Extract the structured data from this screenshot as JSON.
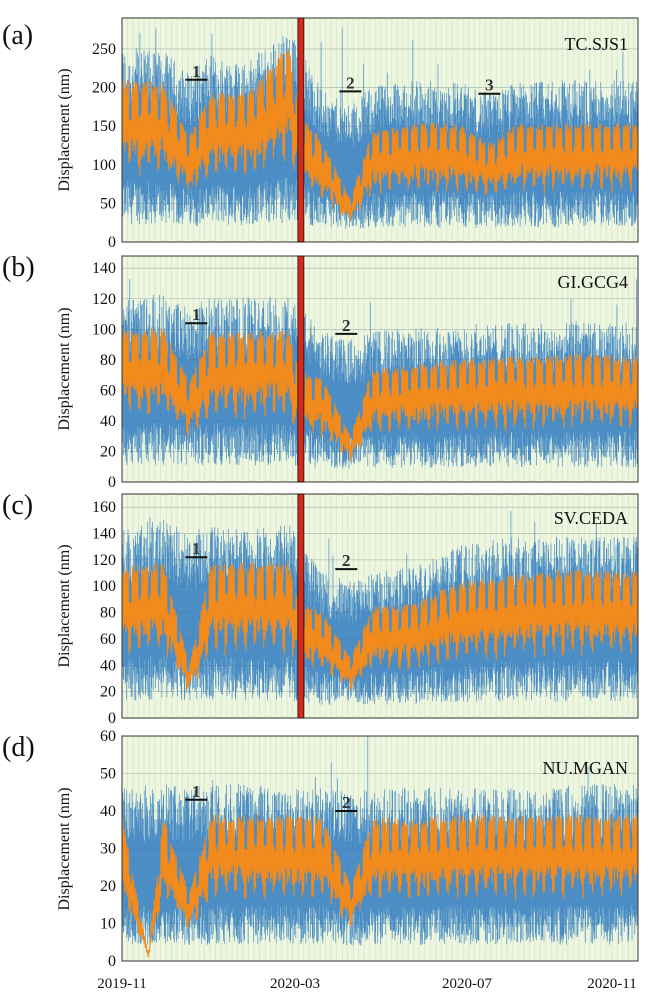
{
  "chart_data": [
    {
      "type": "line",
      "panel_label": "(a)",
      "station": "TC.SJS1",
      "ylabel": "Displacement (nm)",
      "ylim": [
        0,
        290
      ],
      "yticks": [
        0,
        50,
        100,
        150,
        200,
        250
      ],
      "xlim": [
        "2019-11-01",
        "2020-11-10"
      ],
      "series_colors": [
        "#2f7bbf",
        "#f28a1c"
      ],
      "lockdown_marker_date": "2020-03-10",
      "markers": [
        {
          "label": "1",
          "date": "2019-12-25",
          "value": 210
        },
        {
          "label": "2",
          "date": "2020-04-15",
          "value": 195
        },
        {
          "label": "3",
          "date": "2020-07-25",
          "value": 192
        }
      ],
      "series": [
        {
          "name": "",
          "x": [
            "2019-11-01",
            "2019-12-01",
            "2019-12-20",
            "2020-01-05",
            "2020-02-01",
            "2020-03-01",
            "2020-03-10",
            "2020-03-25",
            "2020-04-15",
            "2020-05-01",
            "2020-06-01",
            "2020-07-01",
            "2020-07-25",
            "2020-08-15",
            "2020-09-15",
            "2020-10-15",
            "2020-11-10"
          ],
          "values": [
            230,
            225,
            200,
            220,
            215,
            250,
            230,
            180,
            160,
            185,
            190,
            190,
            175,
            190,
            190,
            195,
            190
          ]
        },
        {
          "name": "",
          "x": [
            "2019-11-01",
            "2019-12-01",
            "2019-12-20",
            "2020-01-05",
            "2020-02-01",
            "2020-03-01",
            "2020-03-10",
            "2020-03-25",
            "2020-04-15",
            "2020-05-01",
            "2020-06-01",
            "2020-07-01",
            "2020-07-25",
            "2020-08-15",
            "2020-09-15",
            "2020-10-15",
            "2020-11-10"
          ],
          "values": [
            205,
            200,
            135,
            190,
            190,
            250,
            160,
            130,
            55,
            140,
            150,
            150,
            125,
            150,
            150,
            150,
            150
          ]
        }
      ]
    },
    {
      "type": "line",
      "panel_label": "(b)",
      "station": "GI.GCG4",
      "ylabel": "Displacement (nm)",
      "ylim": [
        0,
        148
      ],
      "yticks": [
        0,
        20,
        40,
        60,
        80,
        100,
        120,
        140
      ],
      "xlim": [
        "2019-11-01",
        "2020-11-10"
      ],
      "series_colors": [
        "#2f7bbf",
        "#f28a1c"
      ],
      "lockdown_marker_date": "2020-03-10",
      "markers": [
        {
          "label": "1",
          "date": "2019-12-25",
          "value": 104
        },
        {
          "label": "2",
          "date": "2020-04-12",
          "value": 97
        }
      ],
      "series": [
        {
          "name": "",
          "x": [
            "2019-11-01",
            "2019-12-01",
            "2019-12-20",
            "2020-01-05",
            "2020-02-01",
            "2020-03-01",
            "2020-03-10",
            "2020-03-25",
            "2020-04-15",
            "2020-05-01",
            "2020-06-01",
            "2020-07-01",
            "2020-08-01",
            "2020-09-01",
            "2020-10-01",
            "2020-11-10"
          ],
          "values": [
            110,
            112,
            105,
            110,
            110,
            110,
            105,
            90,
            85,
            90,
            92,
            92,
            95,
            95,
            95,
            95
          ]
        },
        {
          "name": "",
          "x": [
            "2019-11-01",
            "2019-12-01",
            "2019-12-20",
            "2020-01-05",
            "2020-02-01",
            "2020-03-01",
            "2020-03-10",
            "2020-03-25",
            "2020-04-15",
            "2020-05-01",
            "2020-06-01",
            "2020-07-01",
            "2020-08-01",
            "2020-09-01",
            "2020-10-01",
            "2020-11-10"
          ],
          "values": [
            98,
            98,
            65,
            96,
            96,
            96,
            70,
            68,
            30,
            72,
            75,
            78,
            80,
            80,
            82,
            80
          ]
        }
      ]
    },
    {
      "type": "line",
      "panel_label": "(c)",
      "station": "SV.CEDA",
      "ylabel": "Displacement (nm)",
      "ylim": [
        0,
        170
      ],
      "yticks": [
        0,
        20,
        40,
        60,
        80,
        100,
        120,
        140,
        160
      ],
      "xlim": [
        "2019-11-01",
        "2020-11-10"
      ],
      "series_colors": [
        "#2f7bbf",
        "#f28a1c"
      ],
      "lockdown_marker_date": "2020-03-10",
      "markers": [
        {
          "label": "1",
          "date": "2019-12-25",
          "value": 122
        },
        {
          "label": "2",
          "date": "2020-04-12",
          "value": 113
        }
      ],
      "series": [
        {
          "name": "",
          "x": [
            "2019-11-01",
            "2019-12-01",
            "2019-12-20",
            "2020-01-05",
            "2020-02-01",
            "2020-03-01",
            "2020-03-10",
            "2020-03-25",
            "2020-04-15",
            "2020-05-01",
            "2020-06-01",
            "2020-07-01",
            "2020-08-01",
            "2020-09-01",
            "2020-10-01",
            "2020-11-10"
          ],
          "values": [
            130,
            140,
            125,
            135,
            130,
            135,
            125,
            100,
            95,
            100,
            105,
            120,
            125,
            125,
            125,
            125
          ]
        },
        {
          "name": "",
          "x": [
            "2019-11-01",
            "2019-12-01",
            "2019-12-20",
            "2020-01-05",
            "2020-02-01",
            "2020-03-01",
            "2020-03-10",
            "2020-03-25",
            "2020-04-15",
            "2020-05-01",
            "2020-06-01",
            "2020-07-01",
            "2020-08-01",
            "2020-09-01",
            "2020-10-01",
            "2020-11-10"
          ],
          "values": [
            112,
            115,
            40,
            115,
            115,
            115,
            85,
            80,
            45,
            82,
            85,
            100,
            105,
            108,
            110,
            108
          ]
        }
      ]
    },
    {
      "type": "line",
      "panel_label": "(d)",
      "station": "NU.MGAN",
      "ylabel": "Displacement (nm)",
      "ylim": [
        0,
        60
      ],
      "yticks": [
        0,
        10,
        20,
        30,
        40,
        50,
        60
      ],
      "xlim": [
        "2019-11-01",
        "2020-11-10"
      ],
      "xticks": [
        "2019-11",
        "2020-03",
        "2020-07",
        "2020-11"
      ],
      "series_colors": [
        "#2f7bbf",
        "#f28a1c"
      ],
      "markers": [
        {
          "label": "1",
          "date": "2019-12-25",
          "value": 43
        },
        {
          "label": "2",
          "date": "2020-04-12",
          "value": 40
        }
      ],
      "series": [
        {
          "name": "",
          "x": [
            "2019-11-01",
            "2019-11-20",
            "2019-12-01",
            "2019-12-20",
            "2020-01-05",
            "2020-02-01",
            "2020-03-01",
            "2020-03-10",
            "2020-03-25",
            "2020-04-15",
            "2020-05-01",
            "2020-06-01",
            "2020-07-01",
            "2020-08-01",
            "2020-09-01",
            "2020-10-01",
            "2020-11-10"
          ],
          "values": [
            42,
            42,
            43,
            42,
            43,
            43,
            43,
            42,
            42,
            41,
            42,
            42,
            42,
            42,
            42,
            43,
            43
          ]
        },
        {
          "name": "",
          "x": [
            "2019-11-01",
            "2019-11-20",
            "2019-12-01",
            "2019-12-20",
            "2020-01-05",
            "2020-02-01",
            "2020-03-01",
            "2020-03-10",
            "2020-03-25",
            "2020-04-15",
            "2020-05-01",
            "2020-06-01",
            "2020-07-01",
            "2020-08-01",
            "2020-09-01",
            "2020-10-01",
            "2020-11-10"
          ],
          "values": [
            38,
            2,
            38,
            18,
            38,
            38,
            38,
            38,
            38,
            20,
            37,
            37,
            38,
            38,
            38,
            38,
            38
          ]
        }
      ]
    }
  ]
}
